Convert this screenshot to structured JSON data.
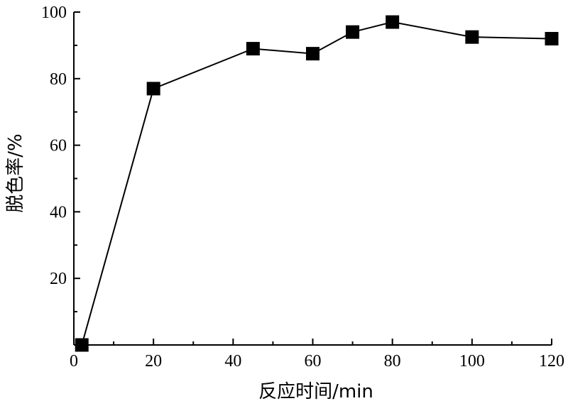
{
  "chart_data": {
    "type": "line",
    "title": "",
    "xlabel": "反应时间/min",
    "ylabel": "脱色率/%",
    "xlim": [
      0,
      120
    ],
    "ylim": [
      0,
      100
    ],
    "x_ticks": [
      "0",
      "20",
      "40",
      "60",
      "80",
      "100",
      "120"
    ],
    "y_ticks": [
      "20",
      "40",
      "60",
      "80",
      "100"
    ],
    "grid": false,
    "marker": "square",
    "series": [
      {
        "x": [
          2,
          20,
          45,
          60,
          70,
          80,
          100,
          120
        ],
        "values": [
          0,
          77,
          89,
          87.5,
          94,
          97,
          92.5,
          92
        ]
      }
    ],
    "colors": {
      "line": "#000000",
      "marker": "#000000"
    }
  }
}
